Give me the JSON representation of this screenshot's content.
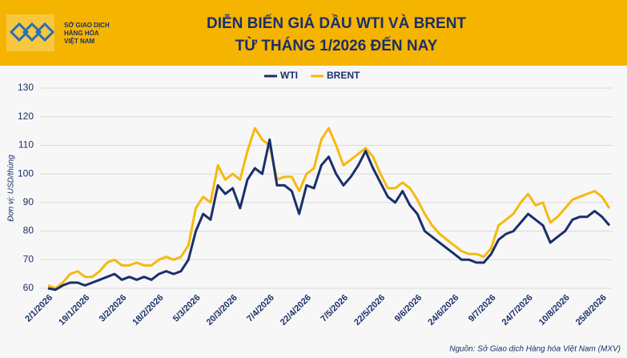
{
  "logo": [
    "SỞ GIAO DỊCH",
    "HÀNG HÓA",
    "VIỆT NAM"
  ],
  "chart_data": {
    "type": "line",
    "title": [
      "DIỄN BIẾN GIÁ DẦU WTI VÀ BRENT",
      "TỪ THÁNG 1/2026 ĐẾN NAY"
    ],
    "y_label": "Đơn vị: USD/thùng",
    "source": "Nguồn: Sở Giao dịch Hàng hóa Việt Nam (MXV)",
    "categories": [
      "2/1/2026",
      null,
      null,
      null,
      null,
      "19/1/2026",
      null,
      null,
      null,
      null,
      "3/2/2026",
      null,
      null,
      null,
      null,
      "18/2/2026",
      null,
      null,
      null,
      null,
      "5/3/2026",
      null,
      null,
      null,
      null,
      "20/3/2026",
      null,
      null,
      null,
      null,
      "7/4/2026",
      null,
      null,
      null,
      null,
      "22/4/2026",
      null,
      null,
      null,
      null,
      "7/5/2026",
      null,
      null,
      null,
      null,
      "22/5/2026",
      null,
      null,
      null,
      null,
      "9/6/2026",
      null,
      null,
      null,
      null,
      "24/6/2026",
      null,
      null,
      null,
      null,
      "9/7/2026",
      null,
      null,
      null,
      null,
      "24/7/2026",
      null,
      null,
      null,
      null,
      "10/8/2026",
      null,
      null,
      null,
      null,
      "25/8/2026",
      null
    ],
    "series": [
      {
        "name": "WTI",
        "color": "#1b2f6b",
        "values": [
          60,
          59.5,
          61,
          62,
          62,
          61,
          62,
          63,
          64,
          65,
          63,
          64,
          63,
          64,
          63,
          65,
          66,
          65,
          66,
          70,
          80,
          86,
          84,
          96,
          93,
          95,
          88,
          98,
          102,
          100,
          112,
          96,
          96,
          94,
          86,
          96,
          95,
          103,
          106,
          100,
          96,
          99,
          103,
          108,
          102,
          97,
          92,
          90,
          94,
          89,
          86,
          80,
          78,
          76,
          74,
          72,
          70,
          70,
          69,
          69,
          72,
          77,
          79,
          80,
          83,
          86,
          84,
          82,
          76,
          78,
          80,
          84,
          85,
          85,
          87,
          85,
          82
        ]
      },
      {
        "name": "BRENT",
        "color": "#f6b90f",
        "values": [
          61,
          60,
          62,
          65,
          66,
          64,
          64,
          66,
          69,
          70,
          68,
          68,
          69,
          68,
          68,
          70,
          71,
          70,
          71,
          75,
          88,
          92,
          90,
          103,
          98,
          100,
          98,
          108,
          116,
          112,
          110,
          98,
          99,
          99,
          94,
          100,
          102,
          112,
          116,
          110,
          103,
          105,
          107,
          109,
          106,
          100,
          95,
          95,
          97,
          95,
          91,
          86,
          82,
          79,
          77,
          75,
          73,
          72,
          72,
          71,
          74,
          82,
          84,
          86,
          90,
          93,
          89,
          90,
          83,
          85,
          88,
          91,
          92,
          93,
          94,
          92,
          88
        ]
      }
    ],
    "ylim": [
      60,
      130
    ],
    "yticks": [
      60,
      70,
      80,
      90,
      100,
      110,
      120,
      130
    ],
    "grid": true,
    "legend": "top"
  }
}
